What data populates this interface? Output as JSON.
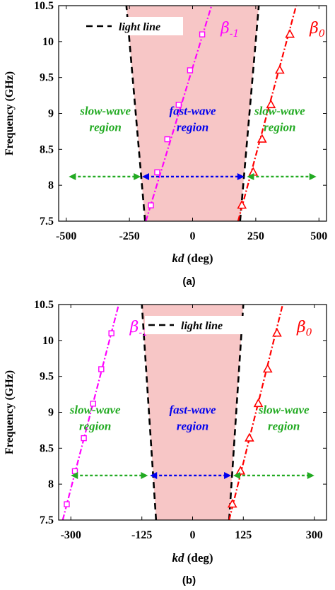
{
  "chart_data": [
    {
      "type": "line",
      "panel_label": "(a)",
      "xlabel_italic": "kd",
      "xlabel_unit": " (deg)",
      "ylabel": "Frequency (GHz)",
      "xlim": [
        -530,
        530
      ],
      "ylim": [
        7.5,
        10.5
      ],
      "xticks": [
        -500,
        -250,
        0,
        250,
        500
      ],
      "xtick_labels": [
        "-500",
        "-250",
        "0",
        "250",
        "500"
      ],
      "yticks": [
        7.5,
        8,
        8.5,
        9,
        9.5,
        10,
        10.5
      ],
      "ytick_labels": [
        "7.5",
        "8",
        "8.5",
        "9",
        "9.5",
        "10",
        "10.5"
      ],
      "grid": false,
      "legend": {
        "position": "top-left",
        "label": "light line"
      },
      "light_line": {
        "freq": [
          7.5,
          10.5
        ],
        "kd": [
          188,
          262
        ]
      },
      "series": [
        {
          "name_sym": "β",
          "name_sub": "-1",
          "color": "#ff00ff",
          "marker": "square",
          "points": [
            [
              -165,
              7.72
            ],
            [
              -140,
              8.18
            ],
            [
              -100,
              8.64
            ],
            [
              -55,
              9.12
            ],
            [
              -10,
              9.6
            ],
            [
              38,
              10.1
            ]
          ],
          "line_kd": [
            -185,
            75
          ],
          "line_freq": [
            7.5,
            10.5
          ]
        },
        {
          "name_sym": "β",
          "name_sub": "0",
          "color": "#ff0000",
          "marker": "triangle",
          "points": [
            [
              195,
              7.72
            ],
            [
              240,
              8.18
            ],
            [
              275,
              8.64
            ],
            [
              310,
              9.12
            ],
            [
              345,
              9.6
            ],
            [
              385,
              10.1
            ]
          ],
          "line_kd": [
            180,
            410
          ],
          "line_freq": [
            7.5,
            10.5
          ]
        }
      ],
      "annotations": [
        {
          "text_1": "slow-wave",
          "text_2": "region",
          "color": "#22aa22",
          "kd": -345,
          "freq_top": 8.98
        },
        {
          "text_1": "fast-wave",
          "text_2": "region",
          "color": "#0000ee",
          "kd": 0,
          "freq_top": 8.98
        },
        {
          "text_1": "slow-wave",
          "text_2": "region",
          "color": "#22aa22",
          "kd": 345,
          "freq_top": 8.98
        }
      ],
      "arrows": [
        {
          "color": "#22aa22",
          "kd": [
            -490,
            -205
          ],
          "freq": 8.12
        },
        {
          "color": "#0000ee",
          "kd": [
            -200,
            205
          ],
          "freq": 8.12
        },
        {
          "color": "#22aa22",
          "kd": [
            215,
            490
          ],
          "freq": 8.12
        }
      ]
    },
    {
      "type": "line",
      "panel_label": "(b)",
      "xlabel_italic": "kd",
      "xlabel_unit": " (deg)",
      "ylabel": "Frequency (GHz)",
      "xlim": [
        -330,
        330
      ],
      "ylim": [
        7.5,
        10.5
      ],
      "xticks": [
        -300,
        -125,
        0,
        125,
        300
      ],
      "xtick_labels": [
        "-300",
        "-125",
        "0",
        "125",
        "300"
      ],
      "yticks": [
        7.5,
        8,
        8.5,
        9,
        9.5,
        10,
        10.5
      ],
      "ytick_labels": [
        "7.5",
        "8",
        "8.5",
        "9",
        "9.5",
        "10",
        "10.5"
      ],
      "grid": false,
      "legend": {
        "position": "top-center",
        "label": "light line"
      },
      "light_line": {
        "freq": [
          7.5,
          10.5
        ],
        "kd": [
          90,
          125
        ]
      },
      "series": [
        {
          "name_sym": "β",
          "name_sub": "-1",
          "color": "#ff00ff",
          "marker": "square",
          "points": [
            [
              -310,
              7.72
            ],
            [
              -290,
              8.18
            ],
            [
              -268,
              8.64
            ],
            [
              -245,
              9.12
            ],
            [
              -225,
              9.6
            ],
            [
              -200,
              10.1
            ]
          ],
          "line_kd": [
            -320,
            -182
          ],
          "line_freq": [
            7.5,
            10.5
          ]
        },
        {
          "name_sym": "β",
          "name_sub": "0",
          "color": "#ff0000",
          "marker": "triangle",
          "points": [
            [
              98,
              7.72
            ],
            [
              118,
              8.18
            ],
            [
              140,
              8.64
            ],
            [
              162,
              9.12
            ],
            [
              185,
              9.6
            ],
            [
              208,
              10.1
            ]
          ],
          "line_kd": [
            90,
            222
          ],
          "line_freq": [
            7.5,
            10.5
          ]
        }
      ],
      "annotations": [
        {
          "text_1": "slow-wave",
          "text_2": "region",
          "color": "#22aa22",
          "kd": -240,
          "freq_top": 8.98
        },
        {
          "text_1": "fast-wave",
          "text_2": "region",
          "color": "#0000ee",
          "kd": 0,
          "freq_top": 8.98
        },
        {
          "text_1": "slow-wave",
          "text_2": "region",
          "color": "#22aa22",
          "kd": 225,
          "freq_top": 8.98
        }
      ],
      "arrows": [
        {
          "color": "#22aa22",
          "kd": [
            -300,
            -110
          ],
          "freq": 8.12
        },
        {
          "color": "#0000ee",
          "kd": [
            -105,
            95
          ],
          "freq": 8.12
        },
        {
          "color": "#22aa22",
          "kd": [
            100,
            300
          ],
          "freq": 8.12
        }
      ]
    }
  ]
}
